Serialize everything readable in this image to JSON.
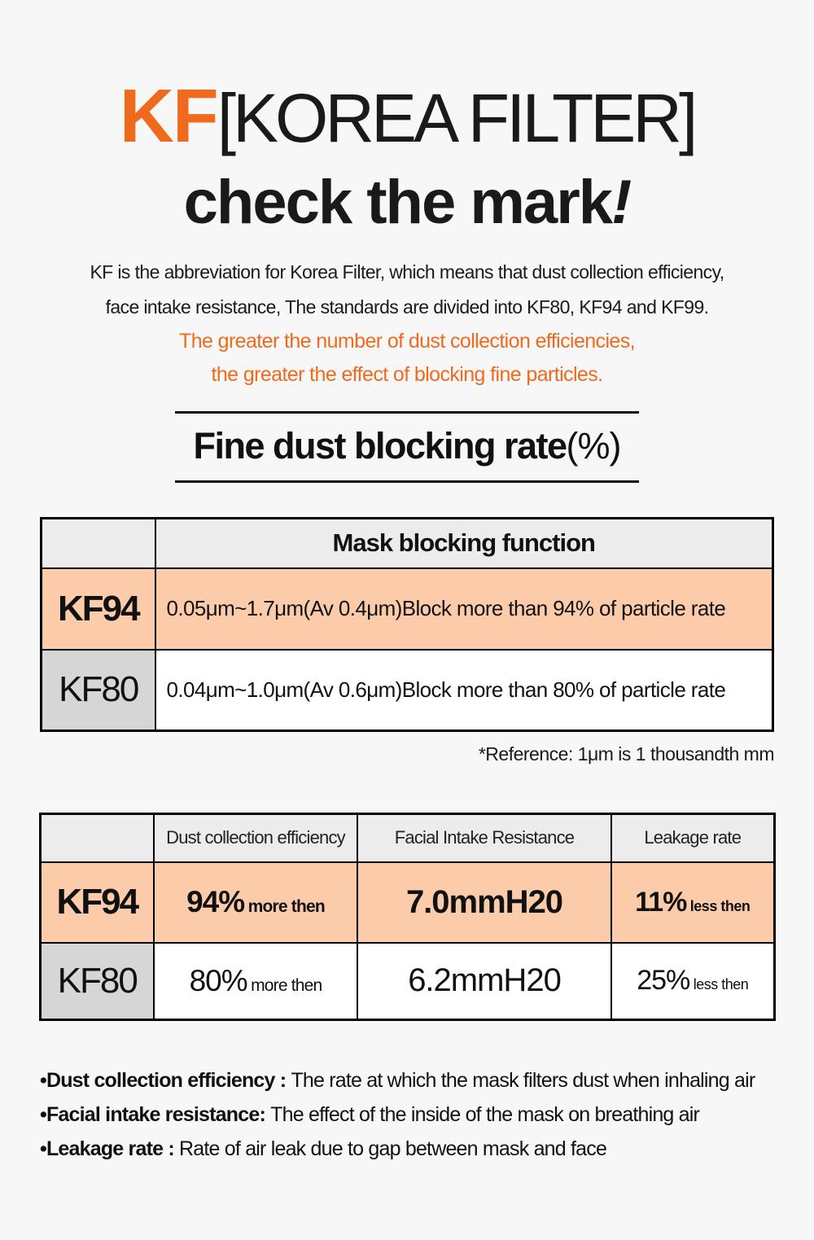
{
  "colors": {
    "accent_orange": "#f06a1e",
    "highlight_row_peach": "#fccbaa",
    "table_header_gray": "#ececec",
    "kf80_label_gray": "#d6d6d6",
    "page_background": "#f7f7f7",
    "table_border": "#000000"
  },
  "header": {
    "brand": "KF",
    "bracket": "[KOREA FILTER]",
    "tagline": "check the mark",
    "tagline_exclaim": "!",
    "intro_line1": "KF is the abbreviation for Korea Filter, which means that dust collection efficiency,",
    "intro_line2": "face intake resistance, The standards are divided into KF80, KF94 and KF99.",
    "highlight_line1": "The greater the number of dust collection efficiencies,",
    "highlight_line2": "the greater the effect of blocking fine particles."
  },
  "section_title": {
    "text": "Fine dust blocking rate",
    "suffix": "(%)"
  },
  "table1": {
    "header": "Mask blocking function",
    "rows": [
      {
        "label": "KF94",
        "value": "0.05μm~1.7μm(Av 0.4μm)Block more than 94% of particle rate"
      },
      {
        "label": "KF80",
        "value": "0.04μm~1.0μm(Av 0.6μm)Block more than 80% of particle rate"
      }
    ],
    "note": "*Reference: 1μm is 1 thousandth mm"
  },
  "table2": {
    "columns": [
      "Dust collection efficiency",
      "Facial Intake Resistance",
      "Leakage rate"
    ],
    "rows": [
      {
        "label": "KF94",
        "dust_value": "94%",
        "dust_suffix": "more then",
        "resistance": "7.0mmH20",
        "leakage_value": "11%",
        "leakage_suffix": "less then"
      },
      {
        "label": "KF80",
        "dust_value": "80%",
        "dust_suffix": "more then",
        "resistance": "6.2mmH20",
        "leakage_value": "25%",
        "leakage_suffix": "less then"
      }
    ]
  },
  "footnotes": {
    "bullet": "•",
    "items": [
      {
        "label": "Dust collection efficiency : ",
        "text": "The rate at which the mask filters dust when inhaling air"
      },
      {
        "label": "Facial intake resistance: ",
        "text": "The effect of the inside of the mask on breathing air"
      },
      {
        "label": "Leakage rate : ",
        "text": "Rate of air leak due to gap between mask and face"
      }
    ]
  }
}
